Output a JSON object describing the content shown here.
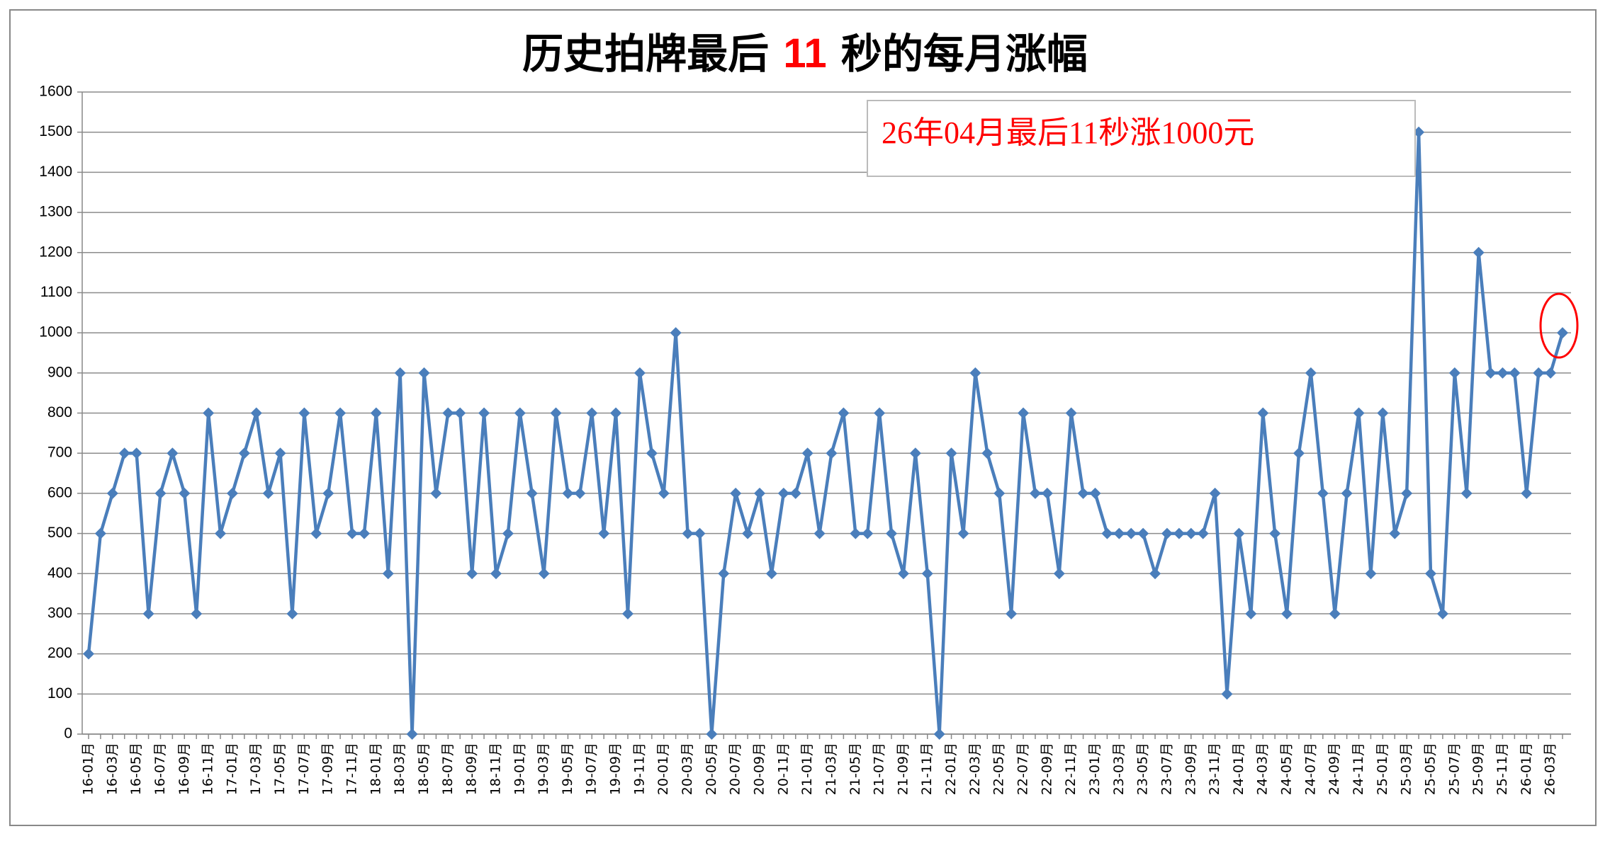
{
  "chart_data": {
    "type": "line",
    "title_parts": [
      "历史拍牌最后 ",
      "11",
      " 秒的每月涨幅"
    ],
    "title_highlight_color": "#ff0000",
    "annotation": "26年04月最后11秒涨1000元",
    "annotation_color": "#ff0000",
    "categories": [
      "16-01月",
      null,
      "16-03月",
      null,
      "16-05月",
      null,
      "16-07月",
      null,
      "16-09月",
      null,
      "16-11月",
      null,
      "17-01月",
      null,
      "17-03月",
      null,
      "17-05月",
      null,
      "17-07月",
      null,
      "17-09月",
      null,
      "17-11月",
      null,
      "18-01月",
      null,
      "18-03月",
      null,
      "18-05月",
      null,
      "18-07月",
      null,
      "18-09月",
      null,
      "18-11月",
      null,
      "19-01月",
      null,
      "19-03月",
      null,
      "19-05月",
      null,
      "19-07月",
      null,
      "19-09月",
      null,
      "19-11月",
      null,
      "20-01月",
      null,
      "20-03月",
      null,
      "20-05月",
      null,
      "20-07月",
      null,
      "20-09月",
      null,
      "20-11月",
      null,
      "21-01月",
      null,
      "21-03月",
      null,
      "21-05月",
      null,
      "21-07月",
      null,
      "21-09月",
      null,
      "21-11月",
      null,
      "22-01月",
      null,
      "22-03月",
      null,
      "22-05月",
      null,
      "22-07月",
      null,
      "22-09月",
      null,
      "22-11月",
      null,
      "23-01月",
      null,
      "23-03月",
      null,
      "23-05月",
      null,
      "23-07月",
      null,
      "23-09月",
      null,
      "23-11月",
      null,
      "24-01月",
      null,
      "24-03月",
      null,
      "24-05月",
      null,
      "24-07月",
      null,
      "24-09月",
      null,
      "24-11月",
      null,
      "25-01月",
      null,
      "25-03月",
      null,
      "25-05月",
      null,
      "25-07月",
      null,
      "25-09月",
      null,
      "25-11月",
      null,
      "26-01月",
      null,
      "26-03月",
      null
    ],
    "series": [
      {
        "color": "#4a7ebb",
        "values": [
          200,
          500,
          600,
          700,
          700,
          300,
          600,
          700,
          600,
          300,
          800,
          500,
          600,
          700,
          800,
          600,
          700,
          300,
          800,
          500,
          600,
          800,
          500,
          500,
          800,
          400,
          900,
          0,
          900,
          600,
          800,
          800,
          400,
          800,
          400,
          500,
          800,
          600,
          400,
          800,
          600,
          600,
          800,
          500,
          800,
          300,
          900,
          700,
          600,
          1000,
          500,
          500,
          0,
          400,
          600,
          500,
          600,
          400,
          600,
          600,
          700,
          500,
          700,
          800,
          500,
          500,
          800,
          500,
          400,
          700,
          400,
          0,
          700,
          500,
          900,
          700,
          600,
          300,
          800,
          600,
          600,
          400,
          800,
          600,
          600,
          500,
          500,
          500,
          500,
          400,
          500,
          500,
          500,
          500,
          600,
          100,
          500,
          300,
          800,
          500,
          300,
          700,
          900,
          600,
          300,
          600,
          800,
          400,
          800,
          500,
          600,
          1500,
          400,
          300,
          900,
          600,
          1200,
          900,
          900,
          900,
          600,
          900,
          900,
          1000
        ]
      }
    ],
    "ylim": [
      0,
      1600
    ],
    "yticks": [
      0,
      100,
      200,
      300,
      400,
      500,
      600,
      700,
      800,
      900,
      1000,
      1100,
      1200,
      1300,
      1400,
      1500,
      1600
    ],
    "grid": true
  }
}
